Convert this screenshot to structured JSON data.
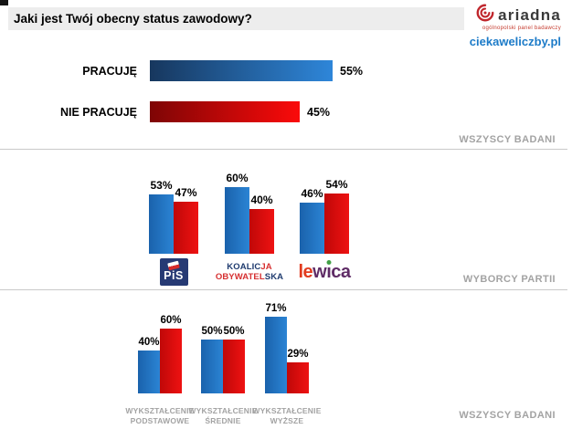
{
  "header": {
    "title": "Jaki jest Twój obecny status zawodowy?",
    "brand": {
      "name": "ariadna",
      "tagline": "ogólnopolski panel badawczy",
      "site": "ciekaweliczby.pl"
    }
  },
  "colors": {
    "hbar_blue_dark": "#17375E",
    "hbar_blue_light": "#2E86D9",
    "hbar_red_dark": "#7E0505",
    "hbar_red_light": "#FB0A0A",
    "vbar_blue_dark": "#1A62AC",
    "vbar_blue_light": "#2B84D4",
    "vbar_red_dark": "#C00808",
    "vbar_red_light": "#EE1212",
    "section_label_gray": "#A3A3A3",
    "brand_red": "#C0272D",
    "site_blue": "#1C7BC8"
  },
  "chart_data": [
    {
      "type": "bar",
      "orientation": "horizontal",
      "section_label": "WSZYSCY BADANI",
      "categories": [
        "PRACUJĘ",
        "NIE PRACUJĘ"
      ],
      "values": [
        55,
        45
      ],
      "unit": "%",
      "series_colors": [
        "blue-gradient",
        "red-gradient"
      ],
      "xlim": [
        0,
        100
      ],
      "grid": false,
      "legend": "none"
    },
    {
      "type": "bar",
      "orientation": "vertical",
      "section_label": "WYBORCY PARTII",
      "categories": [
        "PiS",
        "Koalicja Obywatelska",
        "Lewica"
      ],
      "series": [
        {
          "name": "PRACUJĘ",
          "color": "blue",
          "values": [
            53,
            60,
            46
          ]
        },
        {
          "name": "NIE PRACUJĘ",
          "color": "red",
          "values": [
            47,
            40,
            54
          ]
        }
      ],
      "unit": "%",
      "ylim": [
        0,
        100
      ],
      "grid": false,
      "legend": "none"
    },
    {
      "type": "bar",
      "orientation": "vertical",
      "section_label": "WSZYSCY BADANI",
      "categories": [
        "WYKSZTAŁCENIE PODSTAWOWE",
        "WYKSZTAŁCENIE ŚREDNIE",
        "WYKSZTAŁCENIE WYŻSZE"
      ],
      "series": [
        {
          "name": "PRACUJĘ",
          "color": "blue",
          "values": [
            40,
            50,
            71
          ]
        },
        {
          "name": "NIE PRACUJĘ",
          "color": "red",
          "values": [
            60,
            50,
            29
          ]
        }
      ],
      "unit": "%",
      "ylim": [
        0,
        100
      ],
      "grid": false,
      "legend": "none"
    }
  ],
  "party_logos": {
    "pis": {
      "text": "PiS",
      "bg": "#263A74",
      "fg": "#FFFFFF"
    },
    "ko": {
      "line1": [
        {
          "t": "KOALIC",
          "c": "#1E3A6E"
        },
        {
          "t": "JA",
          "c": "#D63031"
        }
      ],
      "line2": [
        {
          "t": "OBYWATEL",
          "c": "#D63031"
        },
        {
          "t": "SKA",
          "c": "#1E3A6E"
        }
      ]
    },
    "lewica": {
      "parts": [
        {
          "t": "le",
          "c": "#E23B1E"
        },
        {
          "t": "w",
          "c": "#5F2C66"
        },
        {
          "t": "ı",
          "c": "#5F2C66",
          "dot": "#43A047"
        },
        {
          "t": "ca",
          "c": "#5F2C66"
        }
      ]
    }
  }
}
